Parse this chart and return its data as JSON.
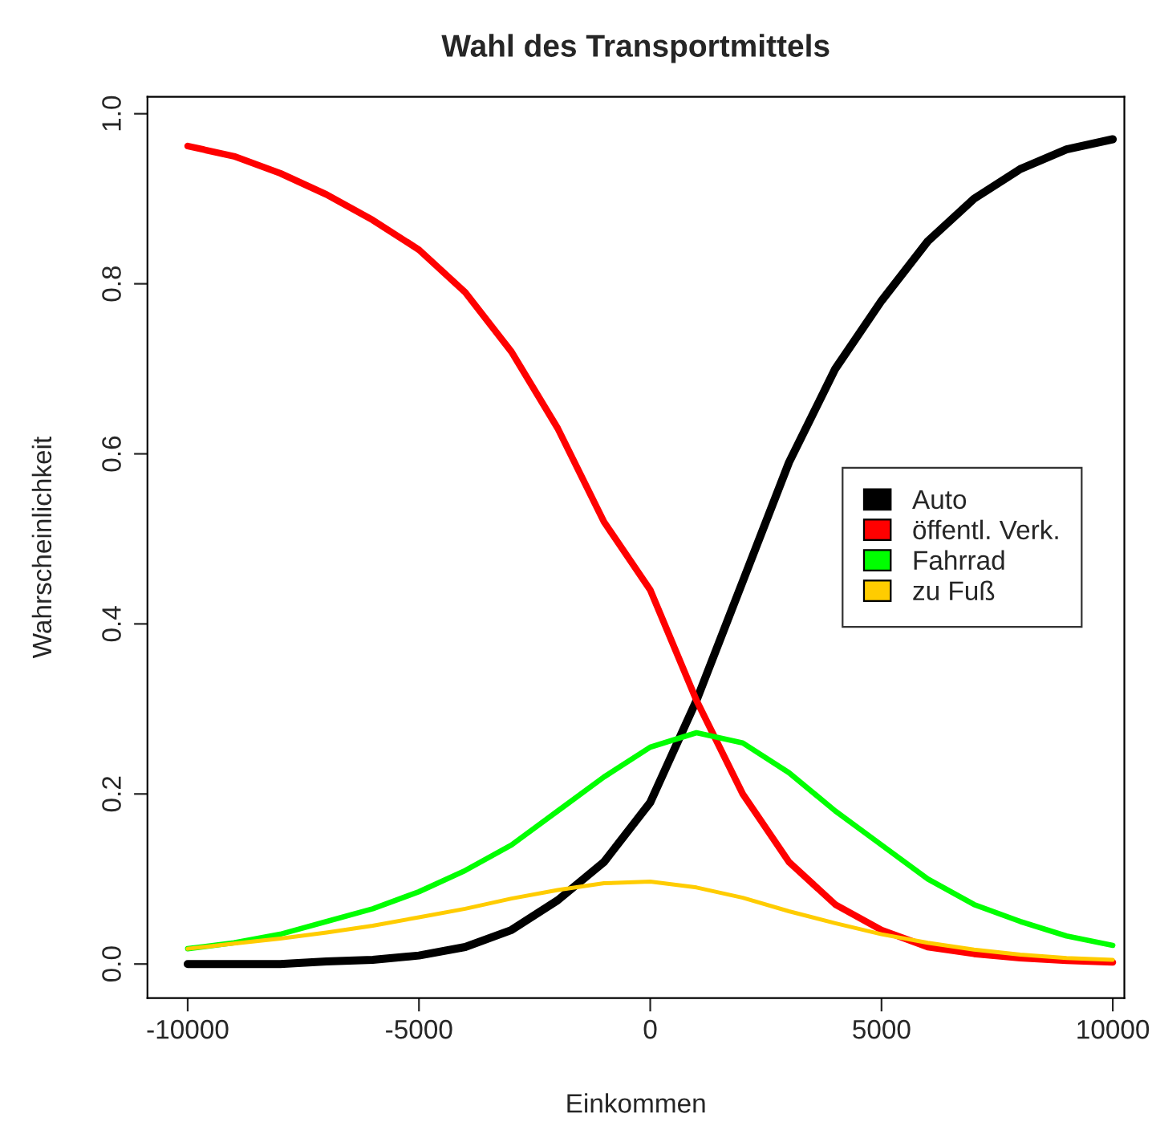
{
  "chart_data": {
    "type": "line",
    "title": "Wahl des Transportmittels",
    "xlabel": "Einkommen",
    "ylabel": "Wahrscheinlichkeit",
    "x": [
      -10000,
      -9000,
      -8000,
      -7000,
      -6000,
      -5000,
      -4000,
      -3000,
      -2000,
      -1000,
      0,
      1000,
      2000,
      3000,
      4000,
      5000,
      6000,
      7000,
      8000,
      9000,
      10000
    ],
    "series": [
      {
        "name": "Auto",
        "color": "#000000",
        "values": [
          0.0,
          0.0,
          0.0,
          0.003,
          0.005,
          0.01,
          0.02,
          0.04,
          0.075,
          0.12,
          0.19,
          0.31,
          0.45,
          0.59,
          0.7,
          0.78,
          0.85,
          0.9,
          0.935,
          0.958,
          0.97
        ]
      },
      {
        "name": "öffentl. Verk.",
        "color": "#ff0000",
        "values": [
          0.962,
          0.95,
          0.93,
          0.905,
          0.875,
          0.84,
          0.79,
          0.72,
          0.63,
          0.52,
          0.44,
          0.31,
          0.2,
          0.12,
          0.07,
          0.04,
          0.02,
          0.012,
          0.007,
          0.004,
          0.002
        ]
      },
      {
        "name": "Fahrrad",
        "color": "#00ff00",
        "values": [
          0.018,
          0.025,
          0.035,
          0.05,
          0.065,
          0.085,
          0.11,
          0.14,
          0.18,
          0.22,
          0.255,
          0.272,
          0.26,
          0.225,
          0.18,
          0.14,
          0.1,
          0.07,
          0.05,
          0.033,
          0.022
        ]
      },
      {
        "name": "zu Fuß",
        "color": "#ffcc00",
        "values": [
          0.018,
          0.024,
          0.03,
          0.037,
          0.045,
          0.055,
          0.065,
          0.077,
          0.087,
          0.095,
          0.097,
          0.09,
          0.078,
          0.062,
          0.048,
          0.035,
          0.025,
          0.017,
          0.011,
          0.007,
          0.005
        ]
      }
    ],
    "xlim": [
      -10870,
      10250
    ],
    "ylim": [
      -0.04,
      1.02
    ],
    "xticks": [
      -10000,
      -5000,
      0,
      5000,
      10000
    ],
    "yticks": [
      {
        "value": 0,
        "label": "0.0"
      },
      {
        "value": 0.2,
        "label": "0.2"
      },
      {
        "value": 0.4,
        "label": "0.4"
      },
      {
        "value": 0.6,
        "label": "0.6"
      },
      {
        "value": 0.8,
        "label": "0.8"
      },
      {
        "value": 1.0,
        "label": "1.0"
      }
    ],
    "legend": "right",
    "grid": false,
    "marker": "none",
    "line_style": "solid"
  }
}
